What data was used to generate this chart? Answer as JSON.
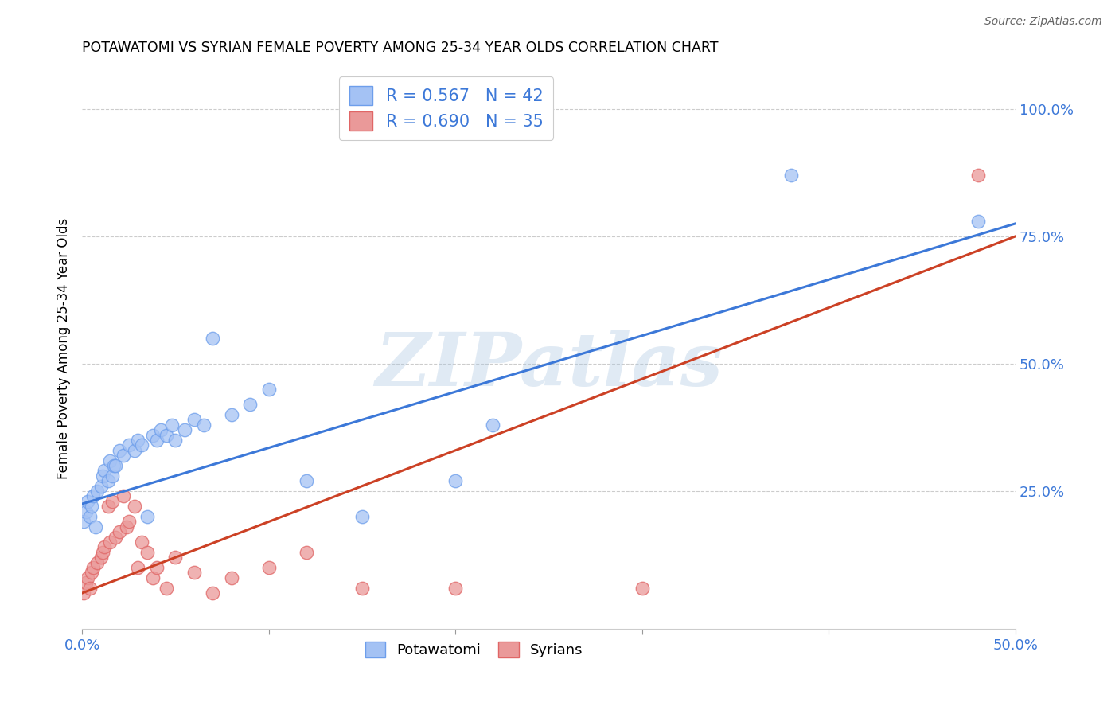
{
  "title": "POTAWATOMI VS SYRIAN FEMALE POVERTY AMONG 25-34 YEAR OLDS CORRELATION CHART",
  "source": "Source: ZipAtlas.com",
  "ylabel": "Female Poverty Among 25-34 Year Olds",
  "xlim": [
    0.0,
    0.5
  ],
  "ylim": [
    -0.02,
    1.08
  ],
  "xticks": [
    0.0,
    0.1,
    0.2,
    0.3,
    0.4,
    0.5
  ],
  "xtick_labels": [
    "0.0%",
    "",
    "",
    "",
    "",
    "50.0%"
  ],
  "yticks": [
    0.25,
    0.5,
    0.75,
    1.0
  ],
  "ytick_labels": [
    "25.0%",
    "50.0%",
    "75.0%",
    "100.0%"
  ],
  "blue_color": "#a4c2f4",
  "pink_color": "#ea9999",
  "blue_edge_color": "#6d9eeb",
  "pink_edge_color": "#e06666",
  "blue_line_color": "#3c78d8",
  "pink_line_color": "#cc4125",
  "tick_label_color": "#3c78d8",
  "R_blue": 0.567,
  "N_blue": 42,
  "R_pink": 0.69,
  "N_pink": 35,
  "blue_intercept": 0.225,
  "blue_slope": 1.1,
  "pink_intercept": 0.05,
  "pink_slope": 1.4,
  "potawatomi_x": [
    0.001,
    0.002,
    0.003,
    0.004,
    0.005,
    0.006,
    0.007,
    0.008,
    0.01,
    0.011,
    0.012,
    0.014,
    0.015,
    0.016,
    0.017,
    0.018,
    0.02,
    0.022,
    0.025,
    0.028,
    0.03,
    0.032,
    0.035,
    0.038,
    0.04,
    0.042,
    0.045,
    0.048,
    0.05,
    0.055,
    0.06,
    0.065,
    0.07,
    0.08,
    0.09,
    0.1,
    0.12,
    0.15,
    0.2,
    0.22,
    0.38,
    0.48
  ],
  "potawatomi_y": [
    0.19,
    0.21,
    0.23,
    0.2,
    0.22,
    0.24,
    0.18,
    0.25,
    0.26,
    0.28,
    0.29,
    0.27,
    0.31,
    0.28,
    0.3,
    0.3,
    0.33,
    0.32,
    0.34,
    0.33,
    0.35,
    0.34,
    0.2,
    0.36,
    0.35,
    0.37,
    0.36,
    0.38,
    0.35,
    0.37,
    0.39,
    0.38,
    0.55,
    0.4,
    0.42,
    0.45,
    0.27,
    0.2,
    0.27,
    0.38,
    0.87,
    0.78
  ],
  "syrians_x": [
    0.001,
    0.002,
    0.003,
    0.004,
    0.005,
    0.006,
    0.008,
    0.01,
    0.011,
    0.012,
    0.014,
    0.015,
    0.016,
    0.018,
    0.02,
    0.022,
    0.024,
    0.025,
    0.028,
    0.03,
    0.032,
    0.035,
    0.038,
    0.04,
    0.045,
    0.05,
    0.06,
    0.07,
    0.08,
    0.1,
    0.12,
    0.15,
    0.2,
    0.3,
    0.48
  ],
  "syrians_y": [
    0.05,
    0.07,
    0.08,
    0.06,
    0.09,
    0.1,
    0.11,
    0.12,
    0.13,
    0.14,
    0.22,
    0.15,
    0.23,
    0.16,
    0.17,
    0.24,
    0.18,
    0.19,
    0.22,
    0.1,
    0.15,
    0.13,
    0.08,
    0.1,
    0.06,
    0.12,
    0.09,
    0.05,
    0.08,
    0.1,
    0.13,
    0.06,
    0.06,
    0.06,
    0.87
  ],
  "watermark": "ZIPatlas",
  "background_color": "#ffffff",
  "grid_color": "#cccccc"
}
